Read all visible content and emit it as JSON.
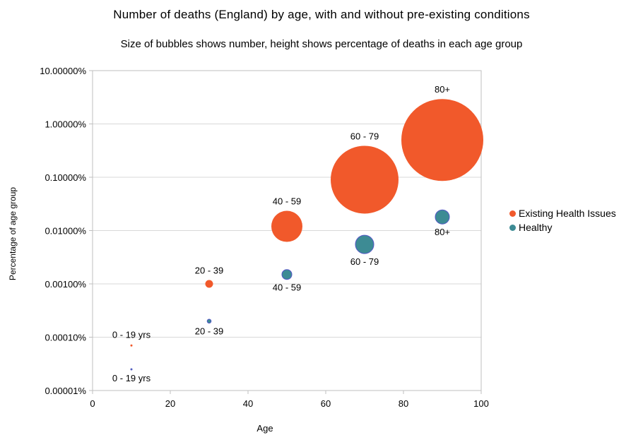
{
  "title": "Number of deaths (England) by age, with and without pre-existing conditions",
  "subtitle": "Size of bubbles shows number, height shows percentage of deaths in each age group",
  "chart_data": {
    "type": "scatter",
    "subtype": "bubble",
    "title": "Number of deaths (England) by age, with and without pre-existing conditions",
    "xlabel": "Age",
    "ylabel": "Percentage of age group",
    "grid": true,
    "legend_position": "right",
    "x_axis": {
      "min": 0,
      "max": 100,
      "tick_values": [
        0,
        20,
        40,
        60,
        80,
        100
      ],
      "tick_labels": [
        "0",
        "20",
        "40",
        "60",
        "80",
        "100"
      ]
    },
    "y_axis": {
      "scale": "log",
      "min_pct": 1e-05,
      "max_pct": 10,
      "tick_values": [
        10,
        1,
        0.1,
        0.01,
        0.001,
        0.0001,
        1e-05
      ],
      "tick_labels": [
        "10.00000%",
        "1.00000%",
        "0.10000%",
        "0.01000%",
        "0.00100%",
        "0.00010%",
        "0.00001%"
      ]
    },
    "series": [
      {
        "name": "Existing Health Issues",
        "color": "#F1592B",
        "stroke": "none",
        "label_side": "above",
        "points": [
          {
            "label": "0 - 19 yrs",
            "x": 10,
            "y_pct": 7e-05,
            "radius_px": 1.5
          },
          {
            "label": "20 - 39",
            "x": 30,
            "y_pct": 0.001,
            "radius_px": 5.5
          },
          {
            "label": "40 - 59",
            "x": 50,
            "y_pct": 0.012,
            "radius_px": 22
          },
          {
            "label": "60 - 79",
            "x": 70,
            "y_pct": 0.09,
            "radius_px": 48
          },
          {
            "label": "80+",
            "x": 90,
            "y_pct": 0.5,
            "radius_px": 58
          }
        ]
      },
      {
        "name": "Healthy",
        "color": "#3D8B94",
        "stroke": "#5356C6",
        "label_side": "below",
        "points": [
          {
            "label": "0 - 19 yrs",
            "x": 10,
            "y_pct": 2.5e-05,
            "radius_px": 1
          },
          {
            "label": "20 - 39",
            "x": 30,
            "y_pct": 0.0002,
            "radius_px": 2.8
          },
          {
            "label": "40 - 59",
            "x": 50,
            "y_pct": 0.0015,
            "radius_px": 7
          },
          {
            "label": "60 - 79",
            "x": 70,
            "y_pct": 0.0055,
            "radius_px": 13
          },
          {
            "label": "80+",
            "x": 90,
            "y_pct": 0.018,
            "radius_px": 10
          }
        ]
      }
    ],
    "colors": {
      "gridline": "#D9D9D9",
      "axis": "#BFBFBF",
      "text": "#000000"
    }
  }
}
